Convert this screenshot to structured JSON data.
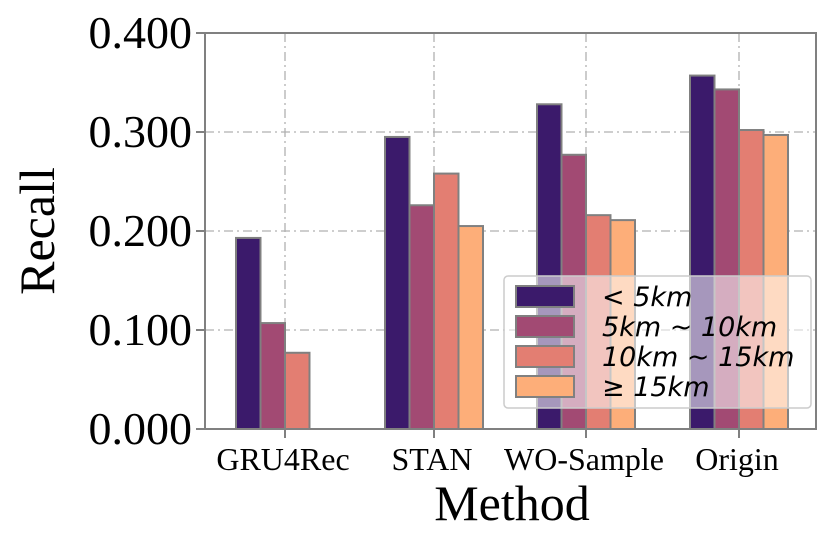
{
  "chart_data": {
    "type": "bar",
    "categories": [
      "GRU4Rec",
      "STAN",
      "WO-Sample",
      "Origin"
    ],
    "series": [
      {
        "name": "< 5km",
        "color": "#3b1a6b",
        "values": [
          0.193,
          0.295,
          0.328,
          0.357
        ]
      },
      {
        "name": "5km ~ 10km",
        "color": "#a24a73",
        "values": [
          0.107,
          0.226,
          0.277,
          0.343
        ]
      },
      {
        "name": "10km ~ 15km",
        "color": "#e37e72",
        "values": [
          0.077,
          0.258,
          0.216,
          0.302
        ]
      },
      {
        "name": "≥ 15km",
        "color": "#fdae79",
        "values": [
          null,
          0.205,
          0.211,
          0.297
        ]
      }
    ],
    "xlabel": "Method",
    "ylabel": "Recall",
    "ylim": [
      0,
      0.4
    ],
    "yticks": [
      "0.000",
      "0.100",
      "0.200",
      "0.300",
      "0.400"
    ],
    "ytick_values": [
      0,
      0.1,
      0.2,
      0.3,
      0.4
    ],
    "grid": true,
    "legend_position": "lower-right"
  }
}
